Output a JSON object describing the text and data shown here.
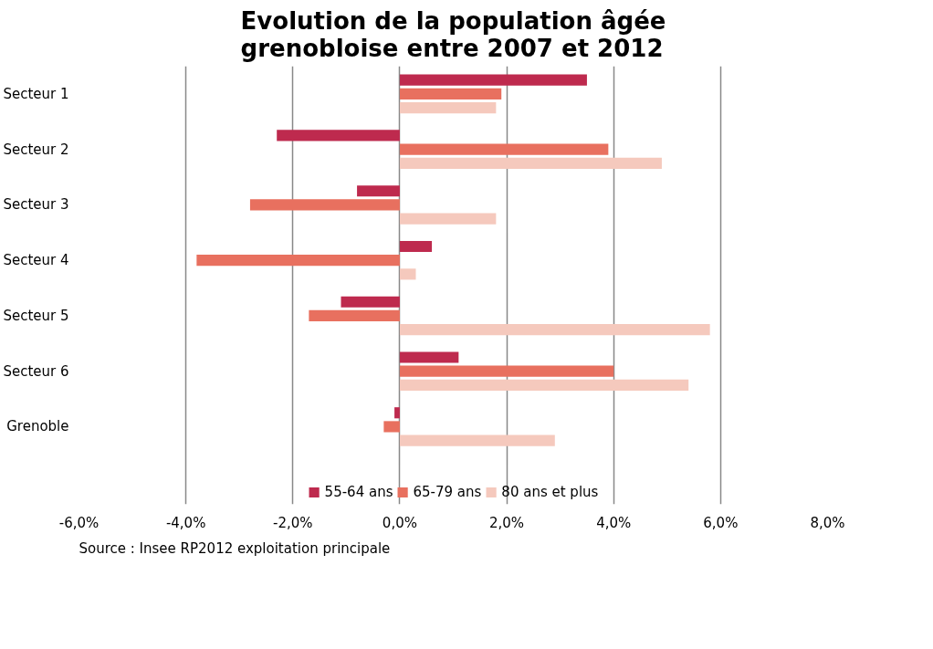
{
  "chart_data": {
    "type": "bar",
    "orientation": "horizontal",
    "title": "Evolution de la population âgée\ngrenobloise entre 2007 et 2012",
    "categories": [
      "Secteur 1",
      "Secteur 2",
      "Secteur 3",
      "Secteur 4",
      "Secteur 5",
      "Secteur 6",
      "Grenoble"
    ],
    "series": [
      {
        "name": "55-64 ans",
        "color": "#be2a4e",
        "values": [
          3.5,
          -2.3,
          -0.8,
          0.6,
          -1.1,
          1.1,
          -0.1
        ]
      },
      {
        "name": "65-79 ans",
        "color": "#e8705f",
        "values": [
          1.9,
          3.9,
          -2.8,
          -3.8,
          -1.7,
          4.0,
          -0.3
        ]
      },
      {
        "name": "80 ans et plus",
        "color": "#f5c9bd",
        "values": [
          1.8,
          4.9,
          1.8,
          0.3,
          5.8,
          5.4,
          2.9
        ]
      }
    ],
    "xlim": [
      -6,
      8
    ],
    "xticks": [
      {
        "value": -6,
        "label": "-6,0%"
      },
      {
        "value": -4,
        "label": "-4,0%"
      },
      {
        "value": -2,
        "label": "-2,0%"
      },
      {
        "value": 0,
        "label": "0,0%"
      },
      {
        "value": 2,
        "label": "2,0%"
      },
      {
        "value": 4,
        "label": "4,0%"
      },
      {
        "value": 6,
        "label": "6,0%"
      },
      {
        "value": 8,
        "label": "8,0%"
      }
    ],
    "grid": "x",
    "legend": "bottom",
    "annotations": [
      "Source : Insee RP2012 exploitation principale"
    ]
  }
}
